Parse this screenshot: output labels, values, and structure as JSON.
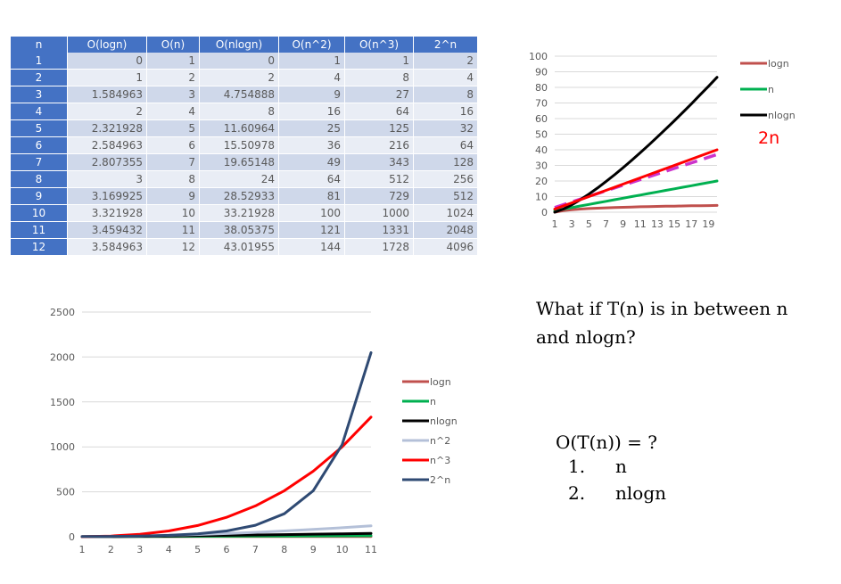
{
  "table": {
    "headers": [
      "n",
      "O(logn)",
      "O(n)",
      "O(nlogn)",
      "O(n^2)",
      "O(n^3)",
      "2^n"
    ],
    "rows": [
      [
        "1",
        "0",
        "1",
        "0",
        "1",
        "1",
        "2"
      ],
      [
        "2",
        "1",
        "2",
        "2",
        "4",
        "8",
        "4"
      ],
      [
        "3",
        "1.584963",
        "3",
        "4.754888",
        "9",
        "27",
        "8"
      ],
      [
        "4",
        "2",
        "4",
        "8",
        "16",
        "64",
        "16"
      ],
      [
        "5",
        "2.321928",
        "5",
        "11.60964",
        "25",
        "125",
        "32"
      ],
      [
        "6",
        "2.584963",
        "6",
        "15.50978",
        "36",
        "216",
        "64"
      ],
      [
        "7",
        "2.807355",
        "7",
        "19.65148",
        "49",
        "343",
        "128"
      ],
      [
        "8",
        "3",
        "8",
        "24",
        "64",
        "512",
        "256"
      ],
      [
        "9",
        "3.169925",
        "9",
        "28.52933",
        "81",
        "729",
        "512"
      ],
      [
        "10",
        "3.321928",
        "10",
        "33.21928",
        "100",
        "1000",
        "1024"
      ],
      [
        "11",
        "3.459432",
        "11",
        "38.05375",
        "121",
        "1331",
        "2048"
      ],
      [
        "12",
        "3.584963",
        "12",
        "43.01955",
        "144",
        "1728",
        "4096"
      ]
    ]
  },
  "chart_data": [
    {
      "type": "line",
      "x": [
        1,
        2,
        3,
        4,
        5,
        6,
        7,
        8,
        9,
        10,
        11,
        12,
        13,
        14,
        15,
        16,
        17,
        18,
        19,
        20
      ],
      "x_tick_labels": [
        "1",
        "3",
        "5",
        "7",
        "9",
        "11",
        "13",
        "15",
        "17",
        "19"
      ],
      "y_tick_labels": [
        "0",
        "10",
        "20",
        "30",
        "40",
        "50",
        "60",
        "70",
        "80",
        "90",
        "100"
      ],
      "ylim": [
        0,
        100
      ],
      "grid": true,
      "legend": "right",
      "series": [
        {
          "name": "logn",
          "color": "#c0504d",
          "values": [
            0,
            1,
            1.58,
            2,
            2.32,
            2.58,
            2.81,
            3,
            3.17,
            3.32,
            3.46,
            3.58,
            3.7,
            3.81,
            3.91,
            4,
            4.09,
            4.17,
            4.25,
            4.32
          ]
        },
        {
          "name": "n",
          "color": "#00b050",
          "values": [
            1,
            2,
            3,
            4,
            5,
            6,
            7,
            8,
            9,
            10,
            11,
            12,
            13,
            14,
            15,
            16,
            17,
            18,
            19,
            20
          ]
        },
        {
          "name": "nlogn",
          "color": "#000000",
          "values": [
            0,
            2,
            4.75,
            8,
            11.61,
            15.51,
            19.65,
            24,
            28.53,
            33.22,
            38.05,
            43.02,
            48.11,
            53.3,
            58.6,
            64,
            69.49,
            75.06,
            80.71,
            86.44
          ]
        },
        {
          "name": "2n",
          "color": "#ff0000",
          "values": [
            2,
            4,
            6,
            8,
            10,
            12,
            14,
            16,
            18,
            20,
            22,
            24,
            26,
            28,
            30,
            32,
            34,
            36,
            38,
            40
          ]
        }
      ],
      "annotation": {
        "text": "2n",
        "color": "#ff0000"
      },
      "dashed_line": {
        "color": "#cc33cc",
        "from": [
          1,
          3
        ],
        "to": [
          20,
          37
        ]
      }
    },
    {
      "type": "line",
      "x": [
        1,
        2,
        3,
        4,
        5,
        6,
        7,
        8,
        9,
        10,
        11
      ],
      "x_tick_labels": [
        "1",
        "2",
        "3",
        "4",
        "5",
        "6",
        "7",
        "8",
        "9",
        "10",
        "11"
      ],
      "y_tick_labels": [
        "0",
        "500",
        "1000",
        "1500",
        "2000",
        "2500"
      ],
      "ylim": [
        0,
        2500
      ],
      "grid": true,
      "legend": "right",
      "series": [
        {
          "name": "logn",
          "color": "#c0504d",
          "values": [
            0,
            1,
            1.58,
            2,
            2.32,
            2.58,
            2.81,
            3,
            3.17,
            3.32,
            3.46
          ]
        },
        {
          "name": "n",
          "color": "#00b050",
          "values": [
            1,
            2,
            3,
            4,
            5,
            6,
            7,
            8,
            9,
            10,
            11
          ]
        },
        {
          "name": "nlogn",
          "color": "#000000",
          "values": [
            0,
            2,
            4.75,
            8,
            11.61,
            15.51,
            19.65,
            24,
            28.53,
            33.22,
            38.05
          ]
        },
        {
          "name": "n^2",
          "color": "#b4c0d8",
          "values": [
            1,
            4,
            9,
            16,
            25,
            36,
            49,
            64,
            81,
            100,
            121
          ]
        },
        {
          "name": "n^3",
          "color": "#ff0000",
          "values": [
            1,
            8,
            27,
            64,
            125,
            216,
            343,
            512,
            729,
            1000,
            1331
          ]
        },
        {
          "name": "2^n",
          "color": "#2f4a73",
          "values": [
            2,
            4,
            8,
            16,
            32,
            64,
            128,
            256,
            512,
            1024,
            2048
          ]
        }
      ]
    }
  ],
  "question": {
    "line1": "What if T(n) is in between n",
    "line2": "and nlogn?",
    "prompt": "O(T(n)) = ?",
    "options": [
      {
        "num": "1.",
        "text": "n"
      },
      {
        "num": "2.",
        "text": "nlogn"
      }
    ]
  }
}
